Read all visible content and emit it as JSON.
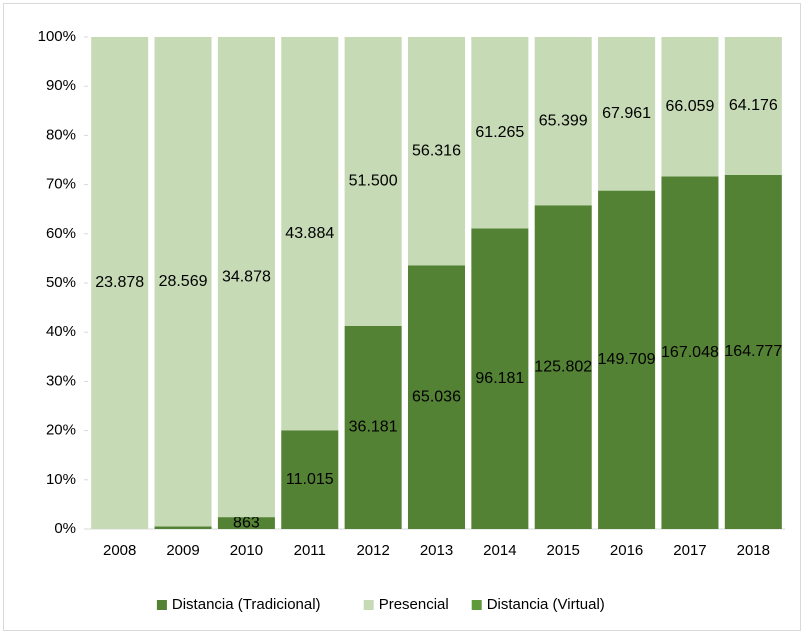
{
  "chart_data": {
    "type": "bar",
    "stacked": "percent",
    "categories": [
      "2008",
      "2009",
      "2010",
      "2011",
      "2012",
      "2013",
      "2014",
      "2015",
      "2016",
      "2017",
      "2018"
    ],
    "series": [
      {
        "name": "Distancia (Tradicional)",
        "color": "#548235",
        "values": [
          null,
          150,
          863,
          11015,
          36181,
          65036,
          96181,
          125802,
          149709,
          167048,
          164777
        ],
        "value_labels": [
          null,
          null,
          "863",
          "11.015",
          "36.181",
          "65.036",
          "96.181",
          "125.802",
          "149.709",
          "167.048",
          "164.777"
        ]
      },
      {
        "name": "Presencial",
        "color": "#c5dab5",
        "values": [
          23878,
          28569,
          34878,
          43884,
          51500,
          56316,
          61265,
          65399,
          67961,
          66059,
          64176
        ],
        "value_labels": [
          "23.878",
          "28.569",
          "34.878",
          "43.884",
          "51.500",
          "56.316",
          "61.265",
          "65.399",
          "67.961",
          "66.059",
          "64.176"
        ]
      },
      {
        "name": "Distancia (Virtual)",
        "color": "#5e9a3c",
        "values": [
          null,
          null,
          null,
          null,
          null,
          null,
          null,
          null,
          null,
          null,
          null
        ]
      }
    ],
    "ylim": [
      0,
      100
    ],
    "yticks": [
      {
        "value": 0,
        "label": "0%"
      },
      {
        "value": 10,
        "label": "10%"
      },
      {
        "value": 20,
        "label": "20%"
      },
      {
        "value": 30,
        "label": "30%"
      },
      {
        "value": 40,
        "label": "40%"
      },
      {
        "value": 50,
        "label": "50%"
      },
      {
        "value": 60,
        "label": "60%"
      },
      {
        "value": 70,
        "label": "70%"
      },
      {
        "value": 80,
        "label": "80%"
      },
      {
        "value": 90,
        "label": "90%"
      },
      {
        "value": 100,
        "label": "100%"
      }
    ],
    "legend": "bottom"
  }
}
